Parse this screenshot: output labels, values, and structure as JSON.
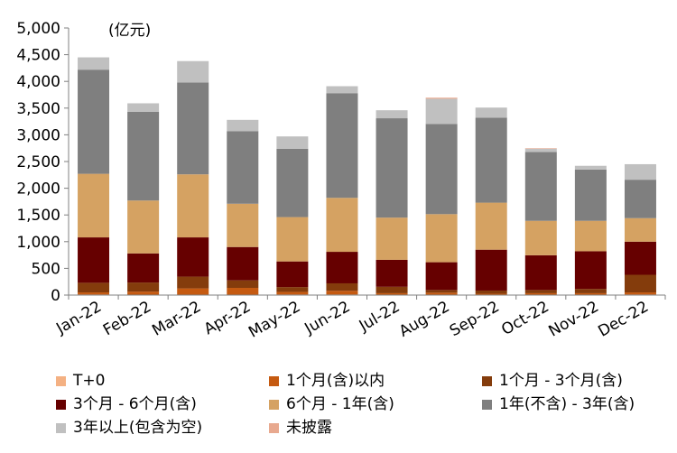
{
  "chart_data": {
    "type": "bar",
    "stacked": true,
    "title": "",
    "unit_label": "(亿元)",
    "xlabel": "",
    "ylabel": "",
    "ylim": [
      0,
      5000
    ],
    "yticks": [
      0,
      500,
      1000,
      1500,
      2000,
      2500,
      3000,
      3500,
      4000,
      4500,
      5000
    ],
    "ytick_labels": [
      "0",
      "500",
      "1,000",
      "1,500",
      "2,000",
      "2,500",
      "3,000",
      "3,500",
      "4,000",
      "4,500",
      "5,000"
    ],
    "grid": false,
    "legend_position": "bottom",
    "categories": [
      "Jan-22",
      "Feb-22",
      "Mar-22",
      "Apr-22",
      "May-22",
      "Jun-22",
      "Jul-22",
      "Aug-22",
      "Sep-22",
      "Oct-22",
      "Nov-22",
      "Dec-22"
    ],
    "series": [
      {
        "name": "T+0",
        "color": "#f4b183",
        "values": [
          10,
          5,
          5,
          5,
          10,
          10,
          5,
          5,
          5,
          5,
          5,
          10
        ]
      },
      {
        "name": "1个月(含)以内",
        "color": "#c55a11",
        "values": [
          40,
          60,
          120,
          130,
          50,
          70,
          30,
          40,
          20,
          30,
          30,
          40
        ]
      },
      {
        "name": "1个月 - 3个月(含)",
        "color": "#843c0c",
        "values": [
          180,
          170,
          220,
          140,
          90,
          140,
          120,
          50,
          60,
          60,
          80,
          330
        ]
      },
      {
        "name": "3个月 - 6个月(含)",
        "color": "#660000",
        "values": [
          850,
          545,
          735,
          625,
          480,
          590,
          505,
          520,
          765,
          650,
          705,
          620
        ]
      },
      {
        "name": "6个月 - 1年(含)",
        "color": "#d5a262",
        "values": [
          1190,
          990,
          1180,
          810,
          830,
          1010,
          790,
          900,
          880,
          645,
          570,
          440
        ]
      },
      {
        "name": "1年(不含) - 3年(含)",
        "color": "#7f7f7f",
        "values": [
          1950,
          1660,
          1720,
          1360,
          1280,
          1960,
          1860,
          1690,
          1590,
          1290,
          960,
          720
        ]
      },
      {
        "name": "3年以上(包含为空)",
        "color": "#c0c0c0",
        "values": [
          230,
          160,
          400,
          210,
          230,
          130,
          150,
          470,
          190,
          60,
          70,
          290
        ]
      },
      {
        "name": "未披露",
        "color": "#e8a98f",
        "values": [
          0,
          0,
          0,
          0,
          0,
          0,
          0,
          20,
          0,
          10,
          0,
          0
        ]
      }
    ]
  }
}
